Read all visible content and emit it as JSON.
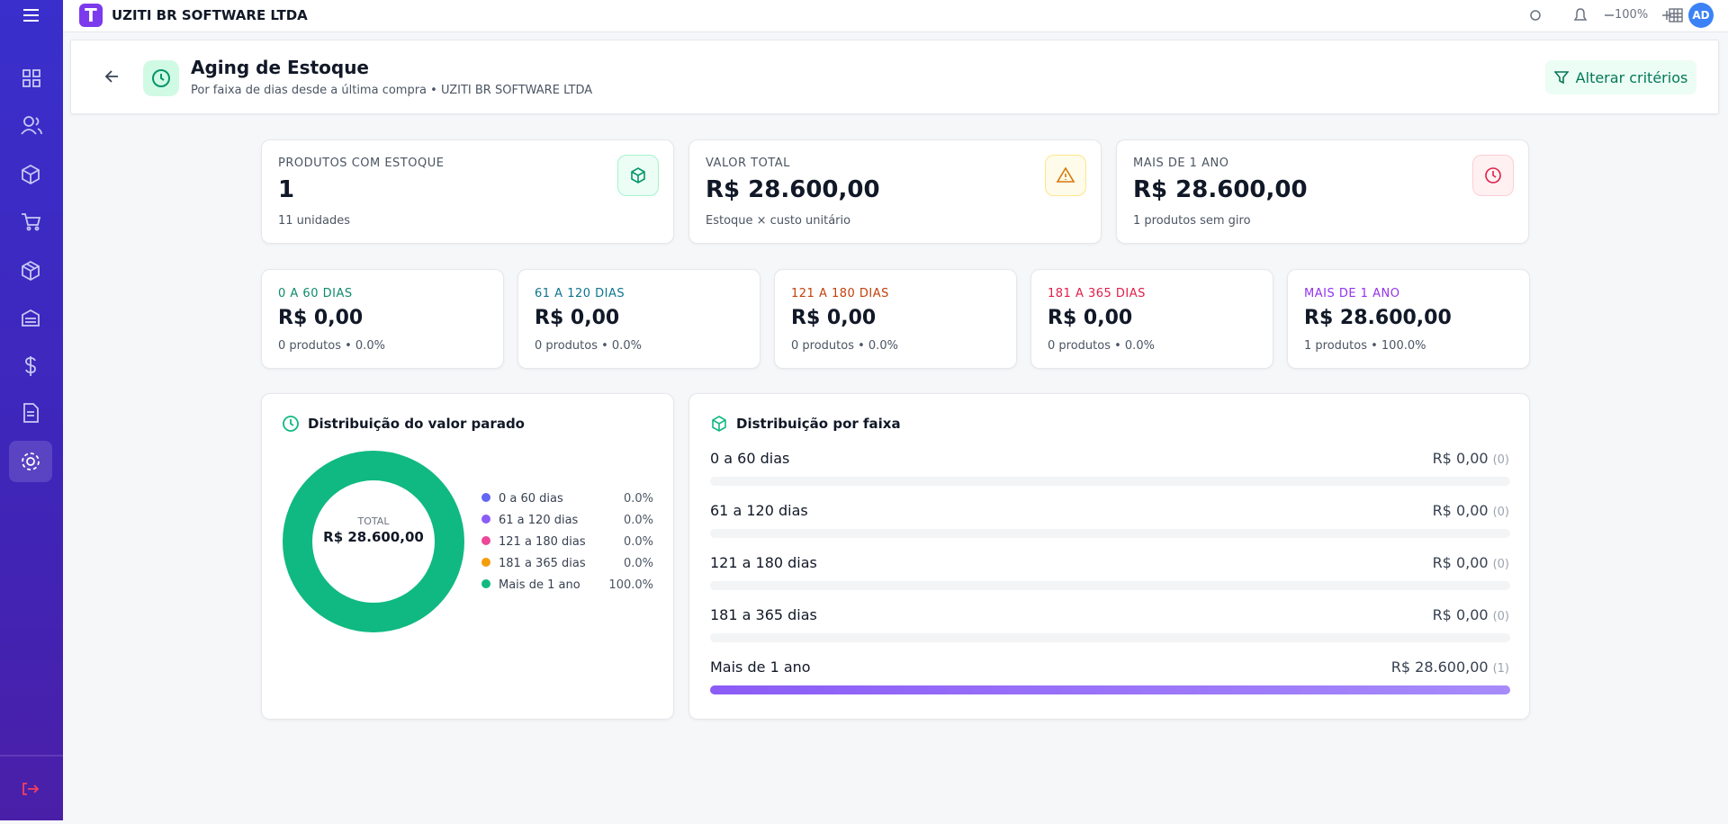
{
  "topbar": {
    "company": "UZITI BR SOFTWARE LTDA",
    "zoom": "100%",
    "avatar": "AD"
  },
  "header": {
    "title": "Aging de Estoque",
    "subtitle": "Por faixa de dias desde a última compra • UZITI BR SOFTWARE LTDA",
    "button": "Alterar critérios"
  },
  "stats": [
    {
      "label": "PRODUTOS COM ESTOQUE",
      "value": "1",
      "note": "11 unidades"
    },
    {
      "label": "VALOR TOTAL",
      "value": "R$ 28.600,00",
      "note": "Estoque × custo unitário"
    },
    {
      "label": "MAIS DE 1 ANO",
      "value": "R$ 28.600,00",
      "note": "1 produtos sem giro"
    }
  ],
  "ranges": [
    {
      "label": "0 A 60 DIAS",
      "value": "R$ 0,00",
      "note": "0 produtos • 0.0%"
    },
    {
      "label": "61 A 120 DIAS",
      "value": "R$ 0,00",
      "note": "0 produtos • 0.0%"
    },
    {
      "label": "121 A 180 DIAS",
      "value": "R$ 0,00",
      "note": "0 produtos • 0.0%"
    },
    {
      "label": "181 A 365 DIAS",
      "value": "R$ 0,00",
      "note": "0 produtos • 0.0%"
    },
    {
      "label": "MAIS DE 1 ANO",
      "value": "R$ 28.600,00",
      "note": "1 produtos • 100.0%"
    }
  ],
  "distribution": {
    "type": "donut",
    "title": "Distribuição do valor parado",
    "total_label": "TOTAL",
    "total": "R$ 28.600,00",
    "categories": [
      "0 a 60 dias",
      "61 a 120 dias",
      "121 a 180 dias",
      "181 a 365 dias",
      "Mais de 1 ano"
    ],
    "colors": [
      "#6366f1",
      "#8b5cf6",
      "#ec4899",
      "#f59e0b",
      "#10b981"
    ],
    "values": [
      0,
      0,
      0,
      0,
      100
    ],
    "value_labels": [
      "0.0%",
      "0.0%",
      "0.0%",
      "0.0%",
      "100.0%"
    ]
  },
  "bands": {
    "title": "Distribuição por faixa",
    "items": [
      {
        "label": "0 a 60 dias",
        "amount": "R$ 0,00",
        "count": "(0)"
      },
      {
        "label": "61 a 120 dias",
        "amount": "R$ 0,00",
        "count": "(0)"
      },
      {
        "label": "121 a 180 dias",
        "amount": "R$ 0,00",
        "count": "(0)"
      },
      {
        "label": "181 a 365 dias",
        "amount": "R$ 0,00",
        "count": "(0)"
      },
      {
        "label": "Mais de 1 ano",
        "amount": "R$ 28.600,00",
        "count": "(1)"
      }
    ]
  }
}
